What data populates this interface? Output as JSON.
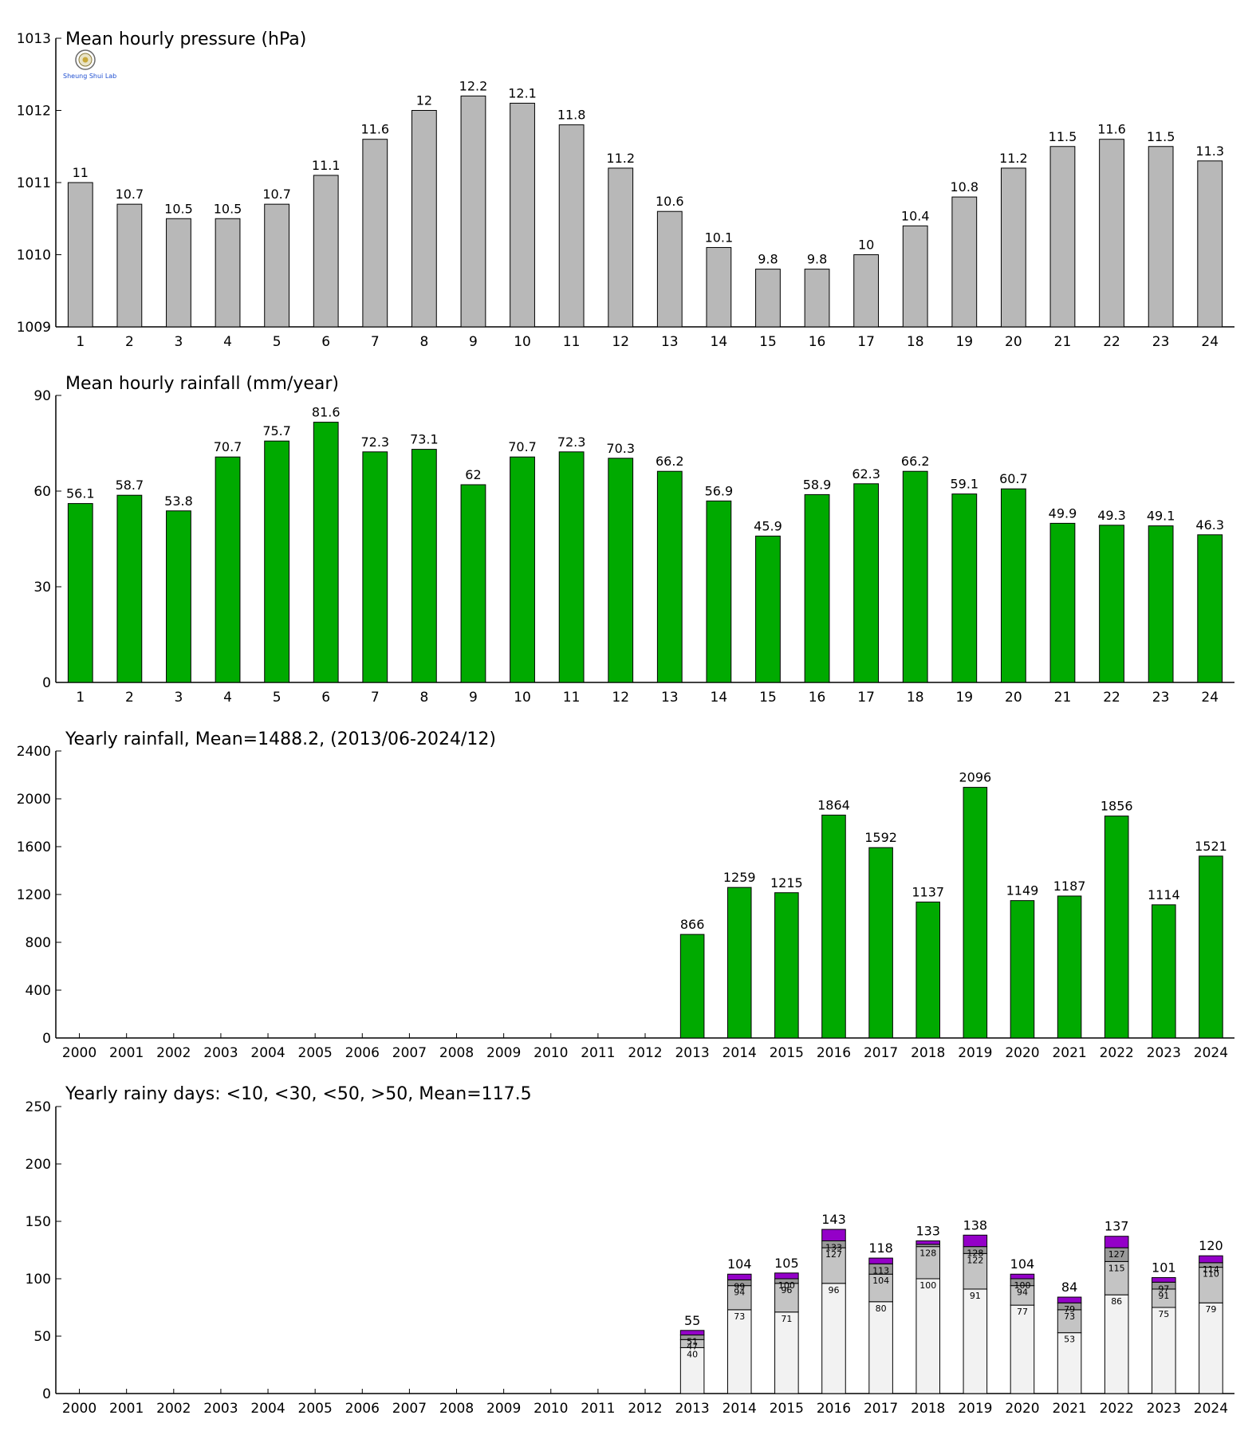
{
  "logo": {
    "text": [
      "Sheung Shui Lab"
    ]
  },
  "colors": {
    "grey": "#b8b8b8",
    "green": "#00aa00",
    "purple": "#9400c8",
    "light": "#f2f2f2",
    "mid": "#c4c4c4",
    "dark": "#999999"
  },
  "chart_data": [
    {
      "type": "bar",
      "title": "Mean hourly pressure (hPa)",
      "categories": [
        "1",
        "2",
        "3",
        "4",
        "5",
        "6",
        "7",
        "8",
        "9",
        "10",
        "11",
        "12",
        "13",
        "14",
        "15",
        "16",
        "17",
        "18",
        "19",
        "20",
        "21",
        "22",
        "23",
        "24"
      ],
      "values": [
        1011.0,
        1010.7,
        1010.5,
        1010.5,
        1010.7,
        1011.1,
        1011.6,
        1012.0,
        1012.2,
        1012.1,
        1011.8,
        1011.2,
        1010.6,
        1010.1,
        1009.8,
        1009.8,
        1010.0,
        1010.4,
        1010.8,
        1011.2,
        1011.5,
        1011.6,
        1011.5,
        1011.3
      ],
      "data_labels": [
        "11",
        "10.7",
        "10.5",
        "10.5",
        "10.7",
        "11.1",
        "11.6",
        "12",
        "12.2",
        "12.1",
        "11.8",
        "11.2",
        "10.6",
        "10.1",
        "9.8",
        "9.8",
        "10",
        "10.4",
        "10.8",
        "11.2",
        "11.5",
        "11.6",
        "11.5",
        "11.3"
      ],
      "ylim": [
        1009,
        1013
      ],
      "yticks": [
        "1009",
        "1010",
        "1011",
        "1012",
        "1013"
      ],
      "color": "#b8b8b8"
    },
    {
      "type": "bar",
      "title": "Mean hourly rainfall (mm/year)",
      "categories": [
        "1",
        "2",
        "3",
        "4",
        "5",
        "6",
        "7",
        "8",
        "9",
        "10",
        "11",
        "12",
        "13",
        "14",
        "15",
        "16",
        "17",
        "18",
        "19",
        "20",
        "21",
        "22",
        "23",
        "24"
      ],
      "values": [
        56.1,
        58.7,
        53.8,
        70.7,
        75.7,
        81.6,
        72.3,
        73.1,
        62,
        70.7,
        72.3,
        70.3,
        66.2,
        56.9,
        45.9,
        58.9,
        62.3,
        66.2,
        59.1,
        60.7,
        49.9,
        49.3,
        49.1,
        46.3
      ],
      "data_labels": [
        "56.1",
        "58.7",
        "53.8",
        "70.7",
        "75.7",
        "81.6",
        "72.3",
        "73.1",
        "62",
        "70.7",
        "72.3",
        "70.3",
        "66.2",
        "56.9",
        "45.9",
        "58.9",
        "62.3",
        "66.2",
        "59.1",
        "60.7",
        "49.9",
        "49.3",
        "49.1",
        "46.3"
      ],
      "ylim": [
        0,
        90
      ],
      "yticks": [
        "0",
        "30",
        "60",
        "90"
      ],
      "color": "#00aa00"
    },
    {
      "type": "bar",
      "title": "Yearly rainfall, Mean=1488.2, (2013/06-2024/12)",
      "categories": [
        "2000",
        "2001",
        "2002",
        "2003",
        "2004",
        "2005",
        "2006",
        "2007",
        "2008",
        "2009",
        "2010",
        "2011",
        "2012",
        "2013",
        "2014",
        "2015",
        "2016",
        "2017",
        "2018",
        "2019",
        "2020",
        "2021",
        "2022",
        "2023",
        "2024"
      ],
      "values": [
        null,
        null,
        null,
        null,
        null,
        null,
        null,
        null,
        null,
        null,
        null,
        null,
        null,
        866,
        1259,
        1215,
        1864,
        1592,
        1137,
        2096,
        1149,
        1187,
        1856,
        1114,
        1521
      ],
      "data_labels": [
        "",
        "",
        "",
        "",
        "",
        "",
        "",
        "",
        "",
        "",
        "",
        "",
        "",
        "866",
        "1259",
        "1215",
        "1864",
        "1592",
        "1137",
        "2096",
        "1149",
        "1187",
        "1856",
        "1114",
        "1521"
      ],
      "ylim": [
        0,
        2400
      ],
      "yticks": [
        "0",
        "400",
        "800",
        "1200",
        "1600",
        "2000",
        "2400"
      ],
      "color": "#00aa00"
    },
    {
      "type": "bar",
      "stacked": true,
      "title": "Yearly rainy days: <10, <30, <50, >50, Mean=117.5",
      "categories": [
        "2000",
        "2001",
        "2002",
        "2003",
        "2004",
        "2005",
        "2006",
        "2007",
        "2008",
        "2009",
        "2010",
        "2011",
        "2012",
        "2013",
        "2014",
        "2015",
        "2016",
        "2017",
        "2018",
        "2019",
        "2020",
        "2021",
        "2022",
        "2023",
        "2024"
      ],
      "cumulative": [
        null,
        null,
        null,
        null,
        null,
        null,
        null,
        null,
        null,
        null,
        null,
        null,
        null,
        [
          40,
          47,
          51,
          55
        ],
        [
          73,
          94,
          99,
          104
        ],
        [
          71,
          96,
          100,
          105
        ],
        [
          96,
          127,
          133,
          143
        ],
        [
          80,
          104,
          113,
          118
        ],
        [
          100,
          128,
          130,
          133
        ],
        [
          91,
          122,
          128,
          138
        ],
        [
          77,
          94,
          100,
          104
        ],
        [
          53,
          73,
          79,
          84
        ],
        [
          86,
          115,
          127,
          137
        ],
        [
          75,
          91,
          97,
          101
        ],
        [
          79,
          110,
          114,
          120
        ]
      ],
      "segment_labels": [
        null,
        null,
        null,
        null,
        null,
        null,
        null,
        null,
        null,
        null,
        null,
        null,
        null,
        [
          "40",
          "47",
          "51"
        ],
        [
          "73",
          "94",
          "99"
        ],
        [
          "71",
          "96",
          "100"
        ],
        [
          "96",
          "127",
          "133"
        ],
        [
          "80",
          "104",
          "113"
        ],
        [
          "100",
          "128",
          ""
        ],
        [
          "91",
          "122",
          "128"
        ],
        [
          "77",
          "94",
          "100"
        ],
        [
          "53",
          "73",
          "79"
        ],
        [
          "86",
          "115",
          "127"
        ],
        [
          "75",
          "91",
          "97"
        ],
        [
          "79",
          "110",
          "114"
        ]
      ],
      "total_labels": [
        "",
        "",
        "",
        "",
        "",
        "",
        "",
        "",
        "",
        "",
        "",
        "",
        "",
        "55",
        "104",
        "105",
        "143",
        "118",
        "133",
        "138",
        "104",
        "84",
        "137",
        "101",
        "120"
      ],
      "ylim": [
        0,
        250
      ],
      "yticks": [
        "0",
        "50",
        "100",
        "150",
        "200",
        "250"
      ],
      "series_colors": [
        "#f2f2f2",
        "#c4c4c4",
        "#999999",
        "#9400c8"
      ]
    }
  ]
}
